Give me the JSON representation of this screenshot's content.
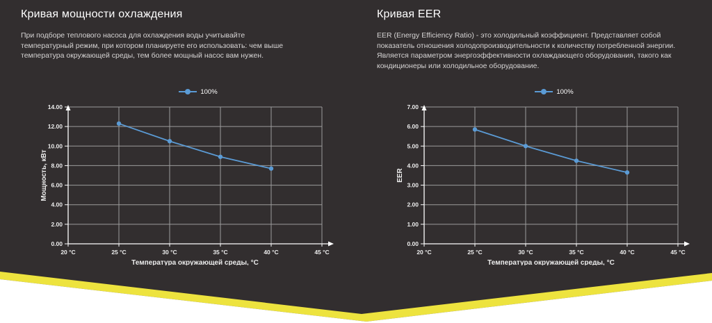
{
  "page": {
    "colors": {
      "background": "#322e2f",
      "accent_yellow": "#ede33e",
      "series_blue": "#5b9bd5",
      "gridline": "#9c9c9c"
    }
  },
  "sections": [
    {
      "title": "Кривая мощности охлаждения",
      "description": "При подборе теплового насоса для охлаждения воды учитывайте температурный режим, при котором планируете его использовать: чем выше температура окружающей среды, тем более мощный насос вам нужен."
    },
    {
      "title": "Кривая EER",
      "description": "EER (Energy Efficiency Ratio) - это холодильный коэффициент. Представляет собой показатель отношения холодопроизводительности к количеству потребленной энергии. Является параметром энергоэффективности охлаждающего оборудования, такого как кондиционеры или холодильное оборудование."
    }
  ],
  "chart_data": [
    {
      "type": "line",
      "title": "",
      "x": [
        25,
        30,
        35,
        40
      ],
      "series": [
        {
          "name": "100%",
          "values": [
            12.3,
            10.5,
            8.9,
            7.7
          ]
        }
      ],
      "xlabel": "Температура окружающей среды, °C",
      "ylabel": "Мощность, кВт",
      "xlim": [
        20,
        45
      ],
      "ylim": [
        0,
        14
      ],
      "x_tick_values": [
        20,
        25,
        30,
        35,
        40,
        45
      ],
      "x_tick_labels": [
        "20 °C",
        "25 °C",
        "30 °C",
        "35 °C",
        "40 °C",
        "45 °C"
      ],
      "y_tick_values": [
        0,
        2,
        4,
        6,
        8,
        10,
        12,
        14
      ],
      "y_tick_labels": [
        "0.00",
        "2.00",
        "4.00",
        "6.00",
        "8.00",
        "10.00",
        "12.00",
        "14.00"
      ],
      "grid": true,
      "legend_position": "top",
      "line_color": "#5b9bd5"
    },
    {
      "type": "line",
      "title": "",
      "x": [
        25,
        30,
        35,
        40
      ],
      "series": [
        {
          "name": "100%",
          "values": [
            5.85,
            5.0,
            4.25,
            3.65
          ]
        }
      ],
      "xlabel": "Температура окружающей среды, °C",
      "ylabel": "EER",
      "xlim": [
        20,
        45
      ],
      "ylim": [
        0,
        7
      ],
      "x_tick_values": [
        20,
        25,
        30,
        35,
        40,
        45
      ],
      "x_tick_labels": [
        "20 °C",
        "25 °C",
        "30 °C",
        "35 °C",
        "40 °C",
        "45 °C"
      ],
      "y_tick_values": [
        0,
        1,
        2,
        3,
        4,
        5,
        6,
        7
      ],
      "y_tick_labels": [
        "0.00",
        "1.00",
        "2.00",
        "3.00",
        "4.00",
        "5.00",
        "6.00",
        "7.00"
      ],
      "grid": true,
      "legend_position": "top",
      "line_color": "#5b9bd5"
    }
  ]
}
